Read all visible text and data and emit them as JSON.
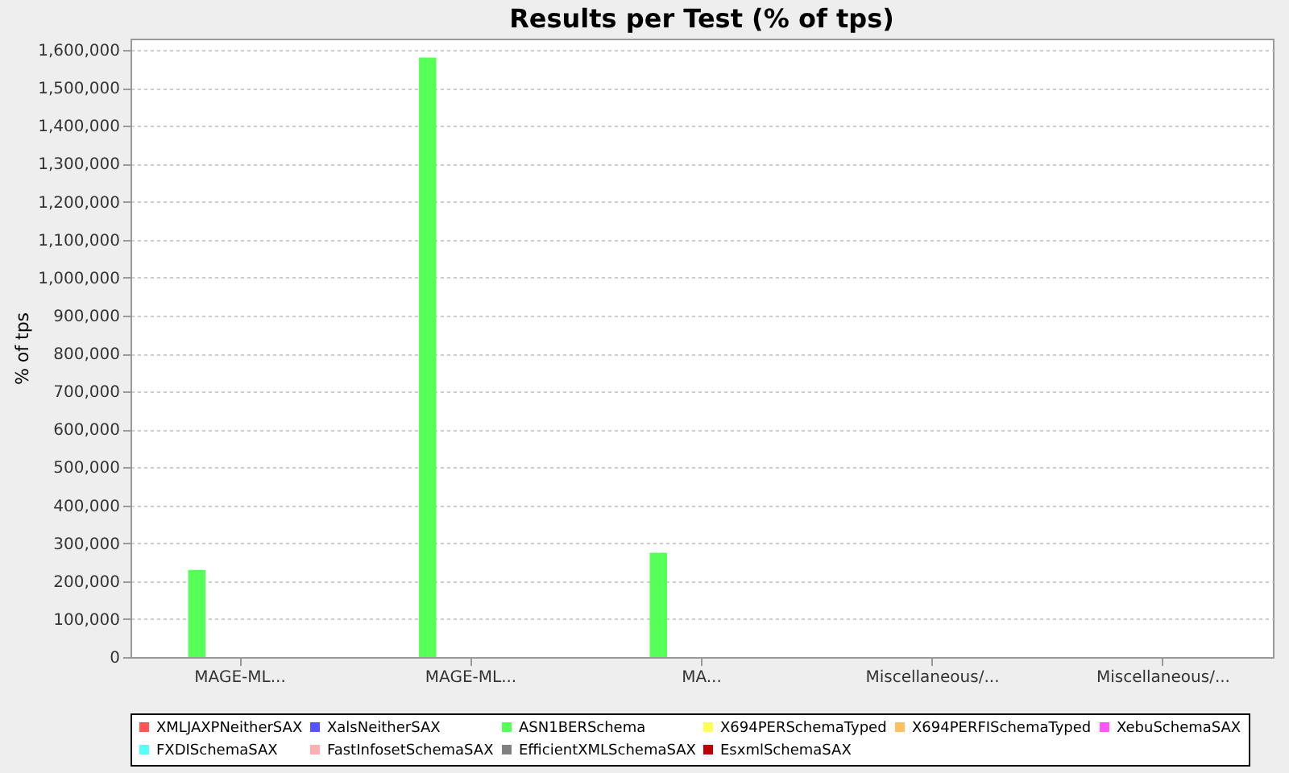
{
  "chart_data": {
    "type": "bar",
    "title": "Results per Test (% of tps)",
    "ylabel": "% of tps",
    "categories": [
      "MAGE-ML...",
      "MAGE-ML...",
      "MA...",
      "Miscellaneous/...",
      "Miscellaneous/..."
    ],
    "series": [
      {
        "name": "XMLJAXPNeitherSAX",
        "color": "#ff5555",
        "values": [
          0,
          0,
          0,
          0,
          0
        ]
      },
      {
        "name": "XalsNeitherSAX",
        "color": "#5555ff",
        "values": [
          0,
          0,
          0,
          0,
          0
        ]
      },
      {
        "name": "ASN1BERSchema",
        "color": "#55ff55",
        "values": [
          230000,
          1580000,
          275000,
          0,
          0
        ]
      },
      {
        "name": "X694PERSchemaTyped",
        "color": "#ffff55",
        "values": [
          0,
          0,
          0,
          0,
          0
        ]
      },
      {
        "name": "X694PERFISchemaTyped",
        "color": "#ffc060",
        "values": [
          0,
          0,
          0,
          0,
          0
        ]
      },
      {
        "name": "XebuSchemaSAX",
        "color": "#ff55ff",
        "values": [
          0,
          0,
          0,
          0,
          0
        ]
      },
      {
        "name": "FXDISchemaSAX",
        "color": "#55ffff",
        "values": [
          0,
          0,
          0,
          0,
          0
        ]
      },
      {
        "name": "FastInfosetSchemaSAX",
        "color": "#ffafaf",
        "values": [
          0,
          0,
          0,
          0,
          0
        ]
      },
      {
        "name": "EfficientXMLSchemaSAX",
        "color": "#808080",
        "values": [
          0,
          0,
          0,
          0,
          0
        ]
      },
      {
        "name": "EsxmlSchemaSAX",
        "color": "#c00000",
        "values": [
          0,
          0,
          0,
          0,
          0
        ]
      }
    ],
    "ylim": [
      0,
      1630000
    ],
    "yticks": [
      0,
      {
        "value": 100000,
        "label": "100,000"
      },
      {
        "value": 200000,
        "label": "200,000"
      },
      {
        "value": 300000,
        "label": "300,000"
      },
      {
        "value": 400000,
        "label": "400,000"
      },
      {
        "value": 500000,
        "label": "500,000"
      },
      {
        "value": 600000,
        "label": "600,000"
      },
      {
        "value": 700000,
        "label": "700,000"
      },
      {
        "value": 800000,
        "label": "800,000"
      },
      {
        "value": 900000,
        "label": "900,000"
      },
      {
        "value": 1000000,
        "label": "1,000,000"
      },
      {
        "value": 1100000,
        "label": "1,100,000"
      },
      {
        "value": 1200000,
        "label": "1,200,000"
      },
      {
        "value": 1300000,
        "label": "1,300,000"
      },
      {
        "value": 1400000,
        "label": "1,400,000"
      },
      {
        "value": 1500000,
        "label": "1,500,000"
      },
      {
        "value": 1600000,
        "label": "1,600,000"
      }
    ],
    "grid": "y",
    "legend": "bottom"
  }
}
